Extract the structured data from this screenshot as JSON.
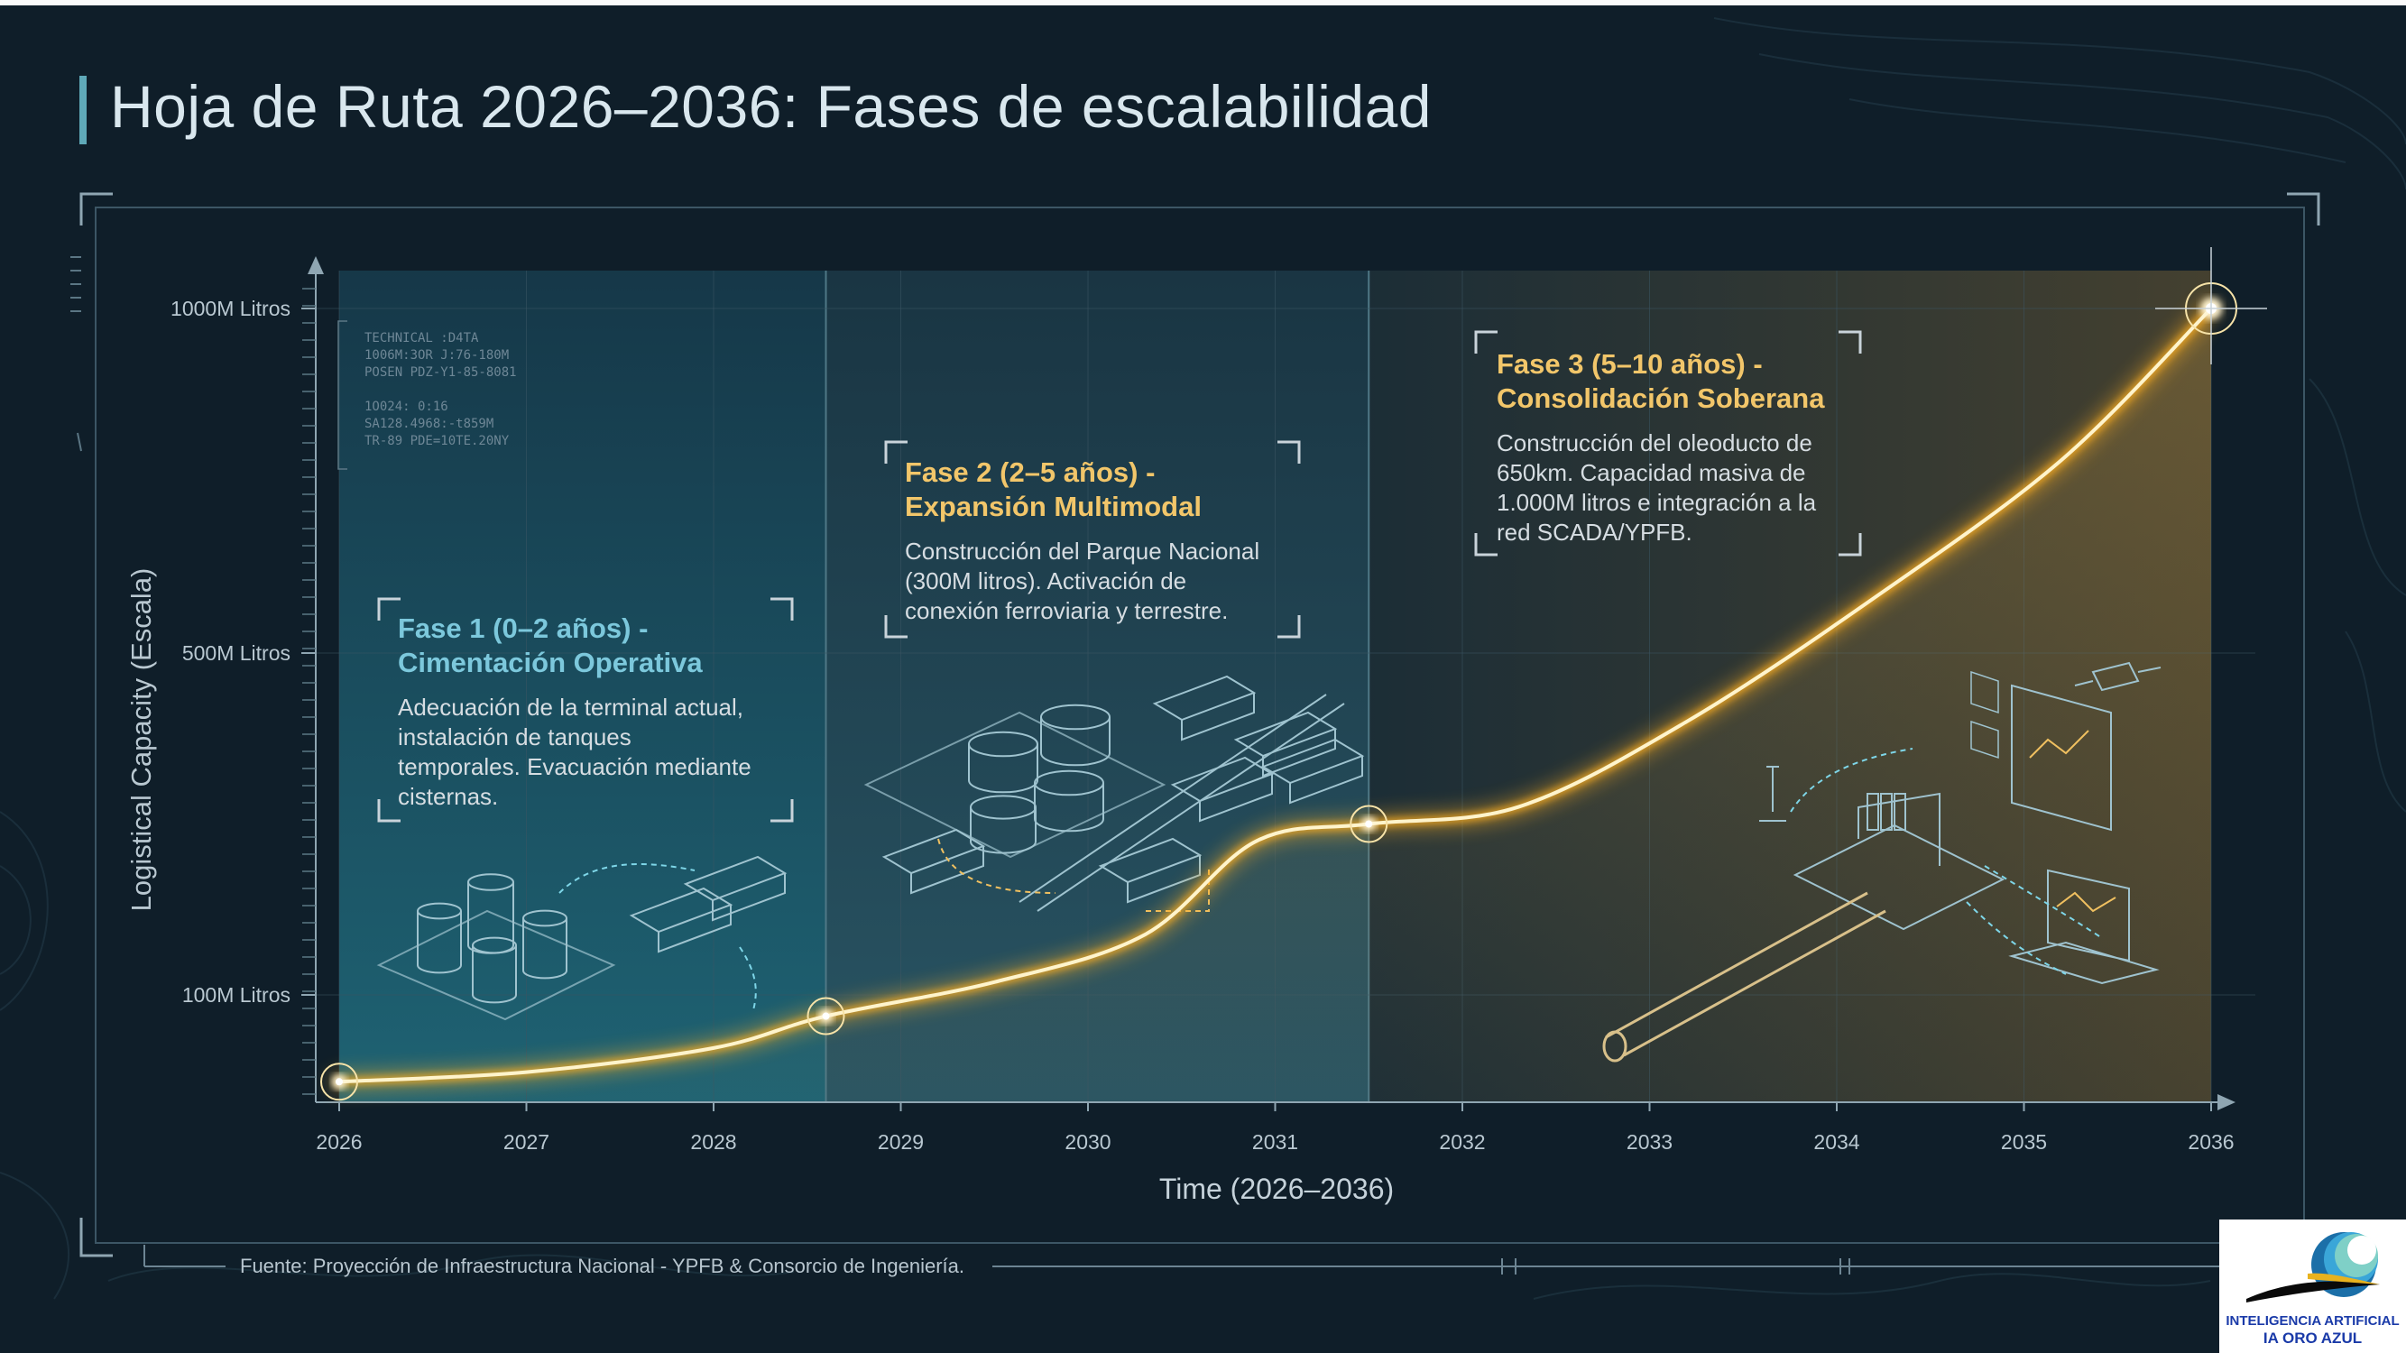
{
  "title": "Hoja de Ruta 2026–2036: Fases de escalabilidad",
  "chart_data": {
    "type": "line",
    "title": "Hoja de Ruta 2026–2036: Fases de escalabilidad",
    "xlabel": "Time (2026–2036)",
    "ylabel": "Logistical Capacity (Escala)",
    "x_ticks": [
      "2026",
      "2027",
      "2028",
      "2029",
      "2030",
      "2031",
      "2032",
      "2033",
      "2034",
      "2035",
      "2036"
    ],
    "y_ticks": [
      "100M Litros",
      "500M Litros",
      "1000M Litros"
    ],
    "y_scale": "nonlinear (100M, 500M, 1000M labeled)",
    "series": [
      {
        "values": [
          {
            "x": 2026.0,
            "y": 10
          },
          {
            "x": 2027.0,
            "y": 20
          },
          {
            "x": 2028.0,
            "y": 45
          },
          {
            "x": 2028.6,
            "y": 78
          },
          {
            "x": 2029.5,
            "y": 115
          },
          {
            "x": 2030.3,
            "y": 170
          },
          {
            "x": 2030.9,
            "y": 280
          },
          {
            "x": 2031.5,
            "y": 300
          },
          {
            "x": 2032.3,
            "y": 320
          },
          {
            "x": 2033.2,
            "y": 420
          },
          {
            "x": 2034.2,
            "y": 580
          },
          {
            "x": 2035.2,
            "y": 780
          },
          {
            "x": 2036.0,
            "y": 1000
          }
        ]
      }
    ],
    "milestones": [
      2026.0,
      2028.6,
      2031.5,
      2036.0
    ],
    "phases": [
      {
        "title_line1": "Fase 1 (0–2 años) -",
        "title_line2": "Cimentación Operativa",
        "description": [
          "Adecuación de la terminal actual,",
          "instalación de tanques",
          "temporales. Evacuación mediante",
          "cisternas."
        ],
        "x_start": 2026.0,
        "x_end": 2028.6,
        "color": "#1b5a6a"
      },
      {
        "title_line1": "Fase 2 (2–5 años) -",
        "title_line2": "Expansión Multimodal",
        "description": [
          "Construcción del Parque Nacional",
          "(300M litros). Activación de",
          "conexión ferroviaria y terrestre."
        ],
        "x_start": 2028.6,
        "x_end": 2031.5,
        "color": "#264753"
      },
      {
        "title_line1": "Fase 3 (5–10 años) -",
        "title_line2": "Consolidación Soberana",
        "description": [
          "Construcción del oleoducto de",
          "650km. Capacidad masiva de",
          "1.000M litros e integración a la",
          "red SCADA/YPFB."
        ],
        "x_start": 2031.5,
        "x_end": 2036.0,
        "color": "#3a3a2c"
      }
    ],
    "grid": true,
    "colors": {
      "line": "#ffcc55",
      "glow": "#ffb020",
      "axis": "#8fa6b2",
      "grid": "#3b5563"
    }
  },
  "technical_data": "TECHNICAL :D4TA\n1006M:3OR J:76-180M\nPOSEN PDZ-Y1-85-8081\n\n1O024: 0:16\nSA128.4968:-t859M\nTR-89 PDE=10TE.20NY",
  "source": "Fuente: Proyección de Infraestructura Nacional - YPFB & Consorcio de Ingeniería.",
  "logo": {
    "line1": "INTELIGENCIA ARTIFICIAL",
    "line2": "IA ORO AZUL"
  }
}
